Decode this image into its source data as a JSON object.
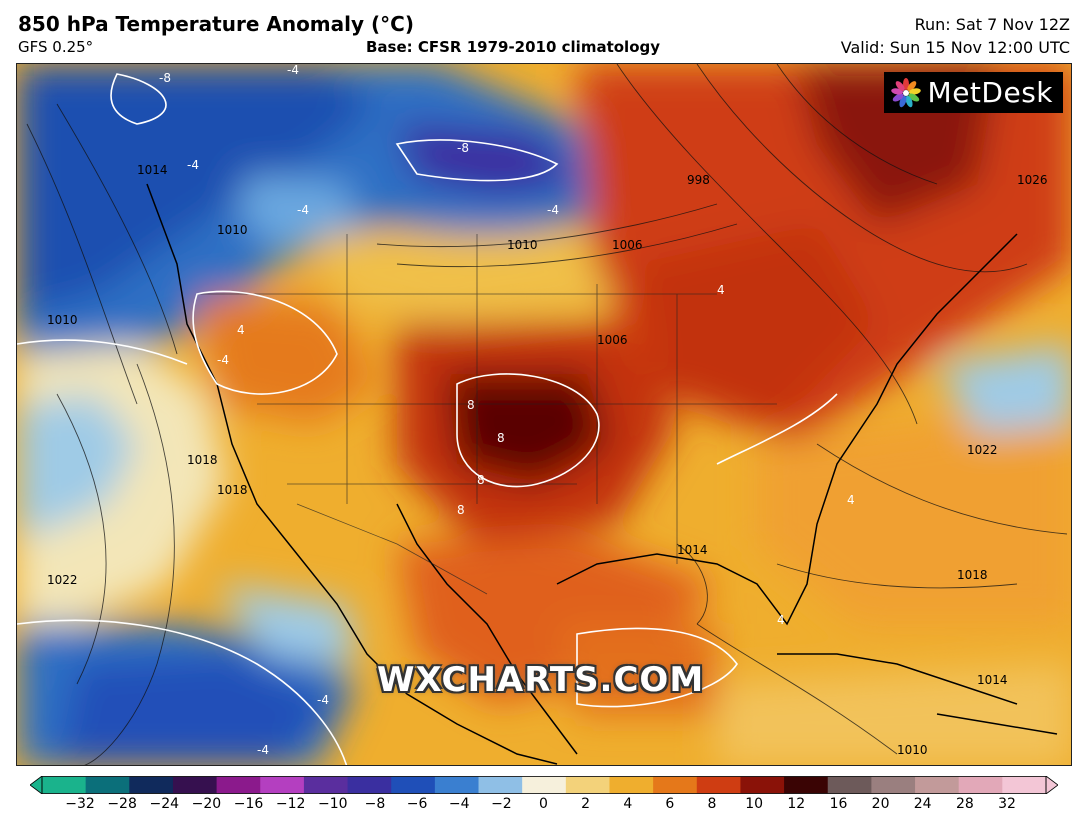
{
  "header": {
    "title": "850 hPa Temperature Anomaly (°C)",
    "model": "GFS 0.25°",
    "base": "Base: CFSR 1979-2010 climatology",
    "run": "Run: Sat 7 Nov 12Z",
    "valid": "Valid: Sun 15 Nov 12:00 UTC"
  },
  "logo": {
    "text": "MetDesk",
    "icon": "flower-icon"
  },
  "watermark": "WXCHARTS.COM",
  "map": {
    "anomaly_labels": [
      "-8",
      "-8",
      "-4",
      "-4",
      "-4",
      "-4",
      "-4",
      "-4",
      "-4",
      "4",
      "4",
      "4",
      "4",
      "8",
      "8",
      "8",
      "8"
    ],
    "isobar_labels": [
      "1006",
      "1010",
      "1010",
      "1014",
      "1018",
      "1018",
      "1022",
      "1022",
      "1014",
      "1010",
      "1026",
      "1018",
      "1006",
      "1014",
      "1010",
      "998"
    ]
  },
  "colorbar": {
    "ticks": [
      "−32",
      "−28",
      "−24",
      "−20",
      "−16",
      "−12",
      "−10",
      "−8",
      "−6",
      "−4",
      "−2",
      "0",
      "2",
      "4",
      "6",
      "8",
      "10",
      "12",
      "16",
      "20",
      "24",
      "28",
      "32"
    ],
    "colors": [
      "#1ab38c",
      "#0b6f7a",
      "#102a5c",
      "#36104f",
      "#8b1a8c",
      "#b43fc0",
      "#5a2e9e",
      "#3a2fa0",
      "#1f4fb8",
      "#3a7fd0",
      "#8fbfe6",
      "#f6f0dc",
      "#f3d27a",
      "#efae2e",
      "#e5781a",
      "#cf3d12",
      "#8a1208",
      "#3a0404",
      "#6d5a5a",
      "#9a7f7f",
      "#c29a9a",
      "#e2a8b8",
      "#f3c6d6"
    ]
  }
}
